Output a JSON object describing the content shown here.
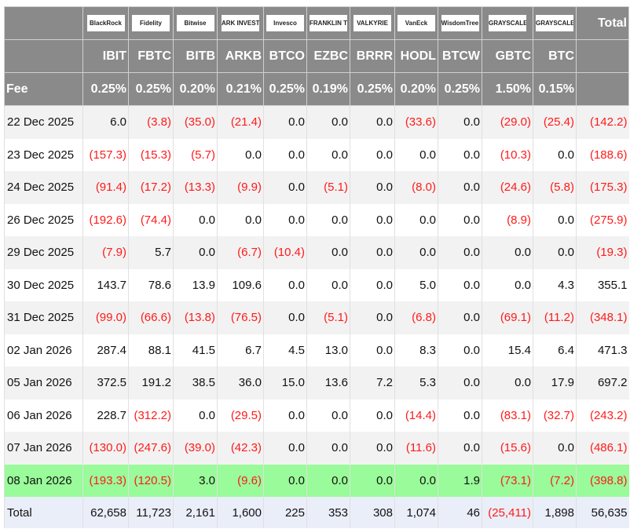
{
  "header": {
    "total_label": "Total",
    "fee_label": "Fee",
    "funds": [
      {
        "logo": "BlackRock",
        "ticker": "IBIT",
        "fee": "0.25%"
      },
      {
        "logo": "Fidelity",
        "ticker": "FBTC",
        "fee": "0.25%"
      },
      {
        "logo": "Bitwise",
        "ticker": "BITB",
        "fee": "0.20%"
      },
      {
        "logo": "ARK INVEST",
        "ticker": "ARKB",
        "fee": "0.21%"
      },
      {
        "logo": "Invesco",
        "ticker": "BTCO",
        "fee": "0.25%"
      },
      {
        "logo": "FRANKLIN TEMPLETON",
        "ticker": "EZBC",
        "fee": "0.19%"
      },
      {
        "logo": "VALKYRIE",
        "ticker": "BRRR",
        "fee": "0.25%"
      },
      {
        "logo": "VanEck",
        "ticker": "HODL",
        "fee": "0.20%"
      },
      {
        "logo": "WisdomTree",
        "ticker": "BTCW",
        "fee": "0.25%"
      },
      {
        "logo": "GRAYSCALE",
        "ticker": "GBTC",
        "fee": "1.50%"
      },
      {
        "logo": "GRAYSCALE",
        "ticker": "BTC",
        "fee": "0.15%"
      }
    ]
  },
  "colors": {
    "negative": "#ff1a1a",
    "header_bg": "#8a8a8a",
    "highlight_row": "#99fb99",
    "total_row": "#eaeef8"
  },
  "rows": [
    {
      "date": "22 Dec 2025",
      "values": [
        "6.0",
        "(3.8)",
        "(35.0)",
        "(21.4)",
        "0.0",
        "0.0",
        "0.0",
        "(33.6)",
        "0.0",
        "(29.0)",
        "(25.4)",
        "(142.2)"
      ]
    },
    {
      "date": "23 Dec 2025",
      "values": [
        "(157.3)",
        "(15.3)",
        "(5.7)",
        "0.0",
        "0.0",
        "0.0",
        "0.0",
        "0.0",
        "0.0",
        "(10.3)",
        "0.0",
        "(188.6)"
      ]
    },
    {
      "date": "24 Dec 2025",
      "values": [
        "(91.4)",
        "(17.2)",
        "(13.3)",
        "(9.9)",
        "0.0",
        "(5.1)",
        "0.0",
        "(8.0)",
        "0.0",
        "(24.6)",
        "(5.8)",
        "(175.3)"
      ]
    },
    {
      "date": "26 Dec 2025",
      "values": [
        "(192.6)",
        "(74.4)",
        "0.0",
        "0.0",
        "0.0",
        "0.0",
        "0.0",
        "0.0",
        "0.0",
        "(8.9)",
        "0.0",
        "(275.9)"
      ]
    },
    {
      "date": "29 Dec 2025",
      "values": [
        "(7.9)",
        "5.7",
        "0.0",
        "(6.7)",
        "(10.4)",
        "0.0",
        "0.0",
        "0.0",
        "0.0",
        "0.0",
        "0.0",
        "(19.3)"
      ]
    },
    {
      "date": "30 Dec 2025",
      "values": [
        "143.7",
        "78.6",
        "13.9",
        "109.6",
        "0.0",
        "0.0",
        "0.0",
        "5.0",
        "0.0",
        "0.0",
        "4.3",
        "355.1"
      ]
    },
    {
      "date": "31 Dec 2025",
      "values": [
        "(99.0)",
        "(66.6)",
        "(13.8)",
        "(76.5)",
        "0.0",
        "(5.1)",
        "0.0",
        "(6.8)",
        "0.0",
        "(69.1)",
        "(11.2)",
        "(348.1)"
      ]
    },
    {
      "date": "02 Jan 2026",
      "values": [
        "287.4",
        "88.1",
        "41.5",
        "6.7",
        "4.5",
        "13.0",
        "0.0",
        "8.3",
        "0.0",
        "15.4",
        "6.4",
        "471.3"
      ]
    },
    {
      "date": "05 Jan 2026",
      "values": [
        "372.5",
        "191.2",
        "38.5",
        "36.0",
        "15.0",
        "13.6",
        "7.2",
        "5.3",
        "0.0",
        "0.0",
        "17.9",
        "697.2"
      ]
    },
    {
      "date": "06 Jan 2026",
      "values": [
        "228.7",
        "(312.2)",
        "0.0",
        "(29.5)",
        "0.0",
        "0.0",
        "0.0",
        "(14.4)",
        "0.0",
        "(83.1)",
        "(32.7)",
        "(243.2)"
      ]
    },
    {
      "date": "07 Jan 2026",
      "values": [
        "(130.0)",
        "(247.6)",
        "(39.0)",
        "(42.3)",
        "0.0",
        "0.0",
        "0.0",
        "(11.6)",
        "0.0",
        "(15.6)",
        "0.0",
        "(486.1)"
      ]
    },
    {
      "date": "08 Jan 2026",
      "highlighted": true,
      "values": [
        "(193.3)",
        "(120.5)",
        "3.0",
        "(9.6)",
        "0.0",
        "0.0",
        "0.0",
        "0.0",
        "1.9",
        "(73.1)",
        "(7.2)",
        "(398.8)"
      ]
    }
  ],
  "total_row": {
    "label": "Total",
    "values": [
      "62,658",
      "11,723",
      "2,161",
      "1,600",
      "225",
      "353",
      "308",
      "1,074",
      "46",
      "(25,411)",
      "1,898",
      "56,635"
    ]
  }
}
